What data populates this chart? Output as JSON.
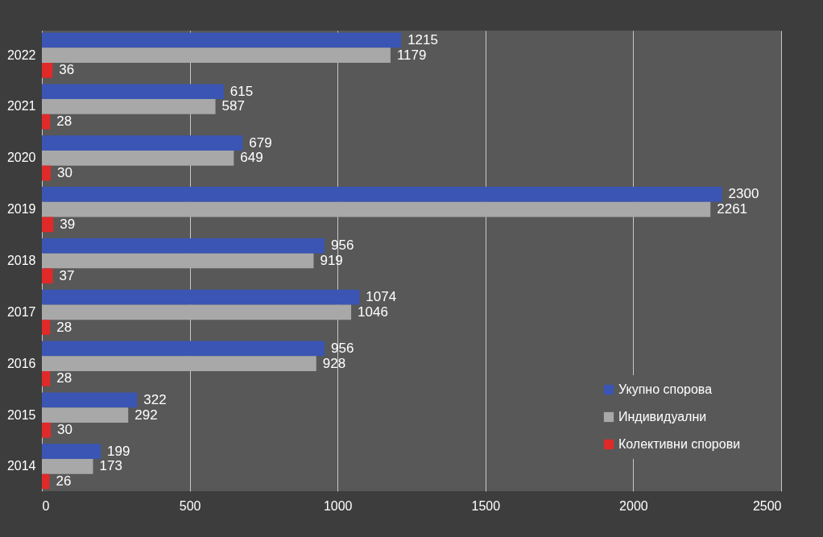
{
  "chart_data": {
    "type": "bar",
    "orientation": "horizontal",
    "categories": [
      "2022",
      "2021",
      "2020",
      "2019",
      "2018",
      "2017",
      "2016",
      "2015",
      "2014"
    ],
    "series": [
      {
        "name": "Укупно спорова",
        "color": "#3a55b4",
        "values": [
          1215,
          615,
          679,
          2300,
          956,
          1074,
          956,
          322,
          199
        ]
      },
      {
        "name": "Индивидуални",
        "color": "#a8a8a8",
        "values": [
          1179,
          587,
          649,
          2261,
          919,
          1046,
          928,
          292,
          173
        ]
      },
      {
        "name": "Колективни спорови",
        "color": "#e02a2a",
        "values": [
          36,
          28,
          30,
          39,
          37,
          28,
          28,
          30,
          26
        ]
      }
    ],
    "xlim": [
      0,
      2500
    ],
    "xticks": [
      0,
      500,
      1000,
      1500,
      2000,
      2500
    ],
    "grid": "x",
    "legend": "bottom right",
    "data_labels": true
  }
}
